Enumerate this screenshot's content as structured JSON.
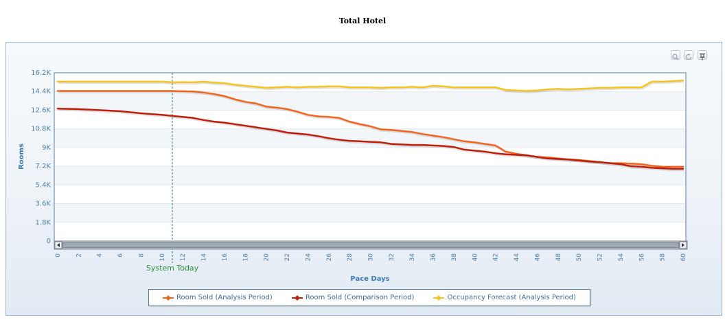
{
  "page": {
    "title": "Total Hotel"
  },
  "toolbar": {
    "buttons": [
      {
        "name": "zoom-in",
        "icon": "magnifier-icon"
      },
      {
        "name": "reset",
        "icon": "refresh-icon"
      },
      {
        "name": "pin",
        "icon": "pin-icon"
      }
    ]
  },
  "colors": {
    "analysis": "#f2651f",
    "comparison": "#bf1e0a",
    "forecast": "#f5c421",
    "marker_line": "#1a8a6a",
    "axis_label": "#3d7ab0",
    "tick_label": "#4a7fa8",
    "marker_label": "#2e8b3f"
  },
  "chart_data": {
    "type": "line",
    "title": "Total Hotel",
    "xlabel": "Pace Days",
    "ylabel": "Rooms",
    "xlim": [
      0,
      60
    ],
    "ylim": [
      0,
      16200
    ],
    "x_ticks": [
      0,
      2,
      4,
      6,
      8,
      10,
      12,
      14,
      16,
      18,
      20,
      22,
      24,
      26,
      28,
      30,
      32,
      34,
      36,
      38,
      40,
      42,
      44,
      46,
      48,
      50,
      52,
      54,
      56,
      58,
      60
    ],
    "y_ticks": [
      {
        "value": 0,
        "label": "0"
      },
      {
        "value": 1800,
        "label": "1.8K"
      },
      {
        "value": 3600,
        "label": "3.6K"
      },
      {
        "value": 5400,
        "label": "5.4K"
      },
      {
        "value": 7200,
        "label": "7.2K"
      },
      {
        "value": 9000,
        "label": "9K"
      },
      {
        "value": 10800,
        "label": "10.8K"
      },
      {
        "value": 12600,
        "label": "12.6K"
      },
      {
        "value": 14400,
        "label": "14.4K"
      },
      {
        "value": 16200,
        "label": "16.2K"
      }
    ],
    "grid": true,
    "legend_position": "bottom-center",
    "marker": {
      "x": 11,
      "label": "System Today"
    },
    "series": [
      {
        "name": "Room Sold (Analysis Period)",
        "color": "#f2651f",
        "points": [
          [
            0,
            14450
          ],
          [
            11,
            14450
          ],
          [
            13,
            14400
          ],
          [
            14,
            14300
          ],
          [
            15,
            14150
          ],
          [
            16,
            13950
          ],
          [
            17,
            13650
          ],
          [
            18,
            13400
          ],
          [
            19,
            13250
          ],
          [
            20,
            12950
          ],
          [
            21,
            12850
          ],
          [
            22,
            12700
          ],
          [
            23,
            12450
          ],
          [
            24,
            12150
          ],
          [
            25,
            12000
          ],
          [
            26,
            11950
          ],
          [
            27,
            11850
          ],
          [
            28,
            11500
          ],
          [
            29,
            11250
          ],
          [
            30,
            11050
          ],
          [
            31,
            10750
          ],
          [
            32,
            10700
          ],
          [
            33,
            10600
          ],
          [
            34,
            10500
          ],
          [
            35,
            10300
          ],
          [
            36,
            10150
          ],
          [
            37,
            10000
          ],
          [
            38,
            9800
          ],
          [
            39,
            9600
          ],
          [
            40,
            9500
          ],
          [
            41,
            9350
          ],
          [
            42,
            9200
          ],
          [
            43,
            8600
          ],
          [
            44,
            8400
          ],
          [
            45,
            8250
          ],
          [
            46,
            8100
          ],
          [
            47,
            8050
          ],
          [
            48,
            7950
          ],
          [
            49,
            7850
          ],
          [
            50,
            7800
          ],
          [
            51,
            7700
          ],
          [
            52,
            7600
          ],
          [
            53,
            7500
          ],
          [
            54,
            7500
          ],
          [
            55,
            7450
          ],
          [
            56,
            7400
          ],
          [
            57,
            7250
          ],
          [
            58,
            7150
          ],
          [
            59,
            7150
          ],
          [
            60,
            7150
          ]
        ]
      },
      {
        "name": "Room Sold (Comparison Period)",
        "color": "#bf1e0a",
        "points": [
          [
            0,
            12750
          ],
          [
            2,
            12700
          ],
          [
            4,
            12600
          ],
          [
            6,
            12500
          ],
          [
            8,
            12300
          ],
          [
            10,
            12150
          ],
          [
            11,
            12050
          ],
          [
            12,
            11950
          ],
          [
            13,
            11850
          ],
          [
            14,
            11650
          ],
          [
            15,
            11500
          ],
          [
            16,
            11400
          ],
          [
            17,
            11250
          ],
          [
            18,
            11100
          ],
          [
            19,
            10950
          ],
          [
            20,
            10800
          ],
          [
            21,
            10650
          ],
          [
            22,
            10450
          ],
          [
            23,
            10350
          ],
          [
            24,
            10250
          ],
          [
            25,
            10100
          ],
          [
            26,
            9900
          ],
          [
            27,
            9750
          ],
          [
            28,
            9650
          ],
          [
            29,
            9600
          ],
          [
            30,
            9550
          ],
          [
            31,
            9500
          ],
          [
            32,
            9350
          ],
          [
            33,
            9300
          ],
          [
            34,
            9250
          ],
          [
            35,
            9250
          ],
          [
            36,
            9200
          ],
          [
            37,
            9150
          ],
          [
            38,
            9050
          ],
          [
            39,
            8800
          ],
          [
            40,
            8700
          ],
          [
            41,
            8600
          ],
          [
            42,
            8450
          ],
          [
            43,
            8350
          ],
          [
            44,
            8300
          ],
          [
            45,
            8250
          ],
          [
            46,
            8100
          ],
          [
            47,
            7950
          ],
          [
            48,
            7900
          ],
          [
            49,
            7850
          ],
          [
            50,
            7750
          ],
          [
            51,
            7650
          ],
          [
            52,
            7600
          ],
          [
            53,
            7500
          ],
          [
            54,
            7400
          ],
          [
            55,
            7200
          ],
          [
            56,
            7150
          ],
          [
            57,
            7050
          ],
          [
            58,
            7000
          ],
          [
            59,
            6950
          ],
          [
            60,
            6950
          ]
        ]
      },
      {
        "name": "Occupancy Forecast (Analysis Period)",
        "color": "#f5c421",
        "points": [
          [
            0,
            15350
          ],
          [
            10,
            15350
          ],
          [
            11,
            15280
          ],
          [
            12,
            15300
          ],
          [
            13,
            15280
          ],
          [
            14,
            15350
          ],
          [
            15,
            15250
          ],
          [
            16,
            15200
          ],
          [
            17,
            15050
          ],
          [
            18,
            14950
          ],
          [
            19,
            14850
          ],
          [
            20,
            14750
          ],
          [
            21,
            14800
          ],
          [
            22,
            14850
          ],
          [
            23,
            14800
          ],
          [
            24,
            14850
          ],
          [
            25,
            14850
          ],
          [
            26,
            14900
          ],
          [
            27,
            14900
          ],
          [
            28,
            14800
          ],
          [
            29,
            14800
          ],
          [
            30,
            14800
          ],
          [
            31,
            14750
          ],
          [
            32,
            14800
          ],
          [
            33,
            14800
          ],
          [
            34,
            14850
          ],
          [
            35,
            14800
          ],
          [
            36,
            14950
          ],
          [
            37,
            14900
          ],
          [
            38,
            14800
          ],
          [
            39,
            14800
          ],
          [
            40,
            14800
          ],
          [
            41,
            14800
          ],
          [
            42,
            14800
          ],
          [
            43,
            14550
          ],
          [
            44,
            14500
          ],
          [
            45,
            14450
          ],
          [
            46,
            14500
          ],
          [
            47,
            14600
          ],
          [
            48,
            14650
          ],
          [
            49,
            14600
          ],
          [
            50,
            14650
          ],
          [
            51,
            14700
          ],
          [
            52,
            14750
          ],
          [
            53,
            14750
          ],
          [
            54,
            14800
          ],
          [
            55,
            14800
          ],
          [
            56,
            14800
          ],
          [
            57,
            15350
          ],
          [
            58,
            15350
          ],
          [
            59,
            15400
          ],
          [
            60,
            15450
          ]
        ]
      }
    ]
  },
  "legend": {
    "items": [
      {
        "label": "Room Sold (Analysis Period)",
        "color": "#f2651f"
      },
      {
        "label": "Room Sold (Comparison Period)",
        "color": "#bf1e0a"
      },
      {
        "label": "Occupancy Forecast (Analysis Period)",
        "color": "#f5c421"
      }
    ]
  }
}
